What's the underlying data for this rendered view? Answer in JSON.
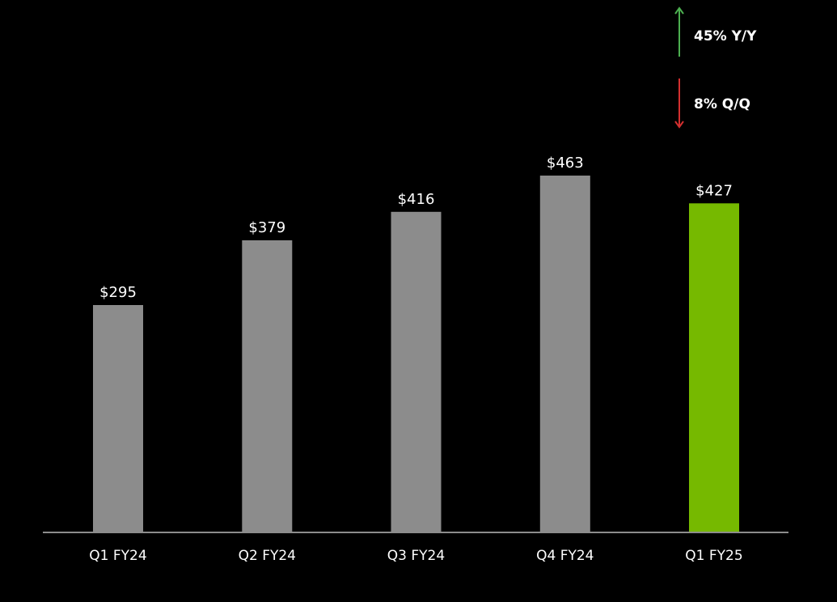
{
  "chart_data": {
    "type": "bar",
    "categories": [
      "Q1 FY24",
      "Q2 FY24",
      "Q3 FY24",
      "Q4 FY24",
      "Q1 FY25"
    ],
    "values": [
      295,
      379,
      416,
      463,
      427
    ],
    "data_labels": [
      "$295",
      "$379",
      "$416",
      "$463",
      "$427"
    ],
    "title": "",
    "xlabel": "",
    "ylabel": "",
    "ylim": [
      0,
      500
    ],
    "grid": false,
    "y_axis_visible": false,
    "bar_color": "#8c8c8c",
    "highlight_index": 4,
    "highlight_color": "#76b900",
    "annotations": [
      {
        "text": "45% Y/Y",
        "direction": "up",
        "color": "#4caf50"
      },
      {
        "text": "8% Q/Q",
        "direction": "down",
        "color": "#d32f2f"
      }
    ]
  },
  "colors": {
    "background": "#000000",
    "text": "#ffffff",
    "axis": "#8c8c8c"
  }
}
